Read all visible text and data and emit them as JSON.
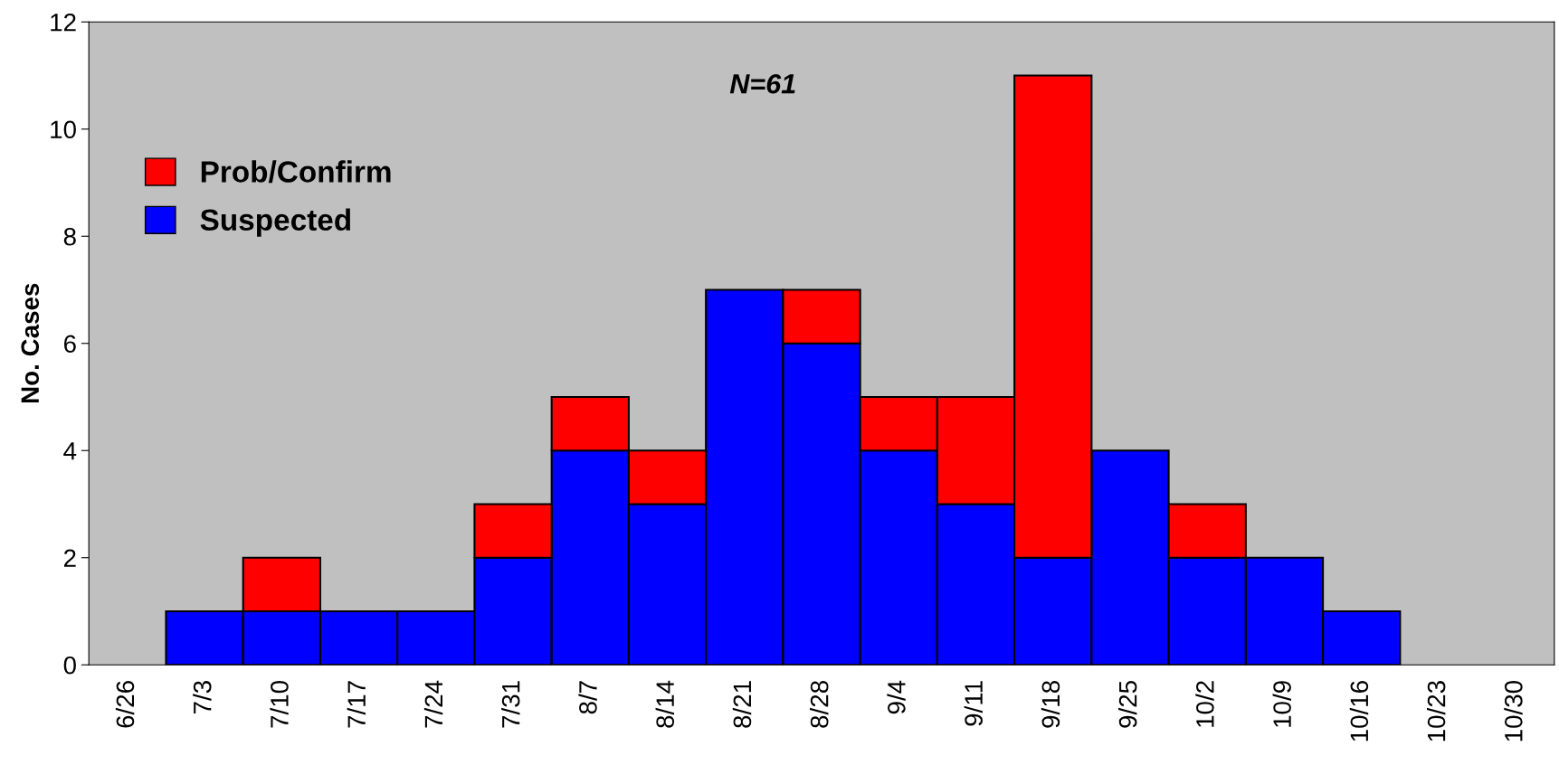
{
  "chart_data": {
    "type": "bar",
    "stacked": true,
    "ylabel": "No. Cases",
    "annotations": [
      "N=61"
    ],
    "categories": [
      "6/26",
      "7/3",
      "7/10",
      "7/17",
      "7/24",
      "7/31",
      "8/7",
      "8/14",
      "8/21",
      "8/28",
      "9/4",
      "9/11",
      "9/18",
      "9/25",
      "10/2",
      "10/9",
      "10/16",
      "10/23",
      "10/30"
    ],
    "series": [
      {
        "name": "Suspected",
        "color": "#0000ff",
        "values": [
          null,
          1,
          1,
          1,
          1,
          2,
          4,
          3,
          7,
          6,
          4,
          3,
          2,
          4,
          2,
          2,
          1,
          null,
          null
        ]
      },
      {
        "name": "Prob/Confirm",
        "color": "#ff0000",
        "values": [
          null,
          null,
          1,
          null,
          null,
          1,
          1,
          1,
          null,
          1,
          1,
          2,
          9,
          null,
          1,
          null,
          null,
          null,
          null
        ]
      }
    ],
    "ylim": [
      0,
      12
    ],
    "yticks": [
      0,
      2,
      4,
      6,
      8,
      10,
      12
    ],
    "grid": false,
    "legend": "top left"
  }
}
